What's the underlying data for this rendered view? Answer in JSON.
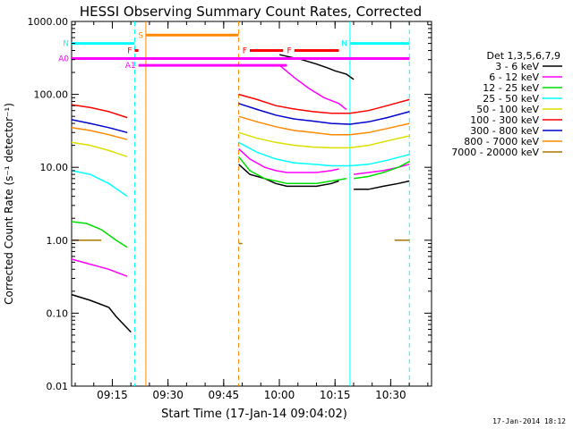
{
  "chart_data": {
    "type": "line",
    "title": "HESSI Observing Summary Count Rates, Corrected",
    "xlabel": "Start Time (17-Jan-14 09:04:02)",
    "ylabel": "Corrected Count Rate (s⁻¹ detector⁻¹)",
    "yscale": "log",
    "ylim": [
      0.01,
      1000
    ],
    "xlim": [
      "09:04:02",
      "10:41:00"
    ],
    "x_tick_labels": [
      "09:15",
      "09:30",
      "09:45",
      "10:00",
      "10:15",
      "10:30"
    ],
    "y_tick_labels": [
      "0.01",
      "0.10",
      "1.00",
      "10.00",
      "100.00",
      "1000.00"
    ],
    "timestamp": "17-Jan-2014 18:12",
    "legend": {
      "header": "Det 1,3,5,6,7,9",
      "placement": "right",
      "entries": [
        {
          "label": "3 - 6 keV",
          "color": "#000000"
        },
        {
          "label": "6 - 12 keV",
          "color": "#ff00ff"
        },
        {
          "label": "12 - 25 keV",
          "color": "#00dd00"
        },
        {
          "label": "25 - 50 keV",
          "color": "#00ffff"
        },
        {
          "label": "50 - 100 keV",
          "color": "#dddd00"
        },
        {
          "label": "100 - 300 keV",
          "color": "#ff0000"
        },
        {
          "label": "300 - 800 keV",
          "color": "#0000cc"
        },
        {
          "label": "800 - 7000 keV",
          "color": "#ff8800"
        },
        {
          "label": "7000 - 20000 keV",
          "color": "#aa7700"
        }
      ]
    },
    "flag_labels": [
      "S",
      "N",
      "F",
      "A0",
      "A1"
    ],
    "series": [
      {
        "name": "3 - 6 keV",
        "color": "#000000",
        "segments": [
          {
            "t": [
              0,
              5,
              10,
              12,
              16
            ],
            "y": [
              0.18,
              0.15,
              0.12,
              0.09,
              0.055
            ]
          },
          {
            "t": [
              56,
              62,
              66,
              69,
              71,
              74,
              76
            ],
            "y": [
              350,
              300,
              260,
              230,
              210,
              190,
              160
            ]
          },
          {
            "t": [
              45,
              48,
              52,
              55,
              58,
              62,
              66,
              70,
              72
            ],
            "y": [
              11,
              8,
              7,
              6,
              5.5,
              5.5,
              5.5,
              6,
              6.5
            ]
          },
          {
            "t": [
              76,
              80,
              84,
              88,
              91
            ],
            "y": [
              5,
              5,
              5.5,
              6,
              6.5
            ]
          }
        ]
      },
      {
        "name": "6 - 12 keV",
        "color": "#ff00ff",
        "segments": [
          {
            "t": [
              0,
              5,
              10,
              15
            ],
            "y": [
              0.55,
              0.47,
              0.4,
              0.32
            ]
          },
          {
            "t": [
              56,
              60,
              64,
              68,
              72,
              74
            ],
            "y": [
              250,
              170,
              120,
              90,
              75,
              62
            ]
          },
          {
            "t": [
              45,
              48,
              52,
              55,
              58,
              62,
              66,
              70,
              72
            ],
            "y": [
              18,
              13,
              10,
              9,
              8.5,
              8.5,
              8.5,
              9,
              9.5
            ]
          },
          {
            "t": [
              76,
              80,
              84,
              88,
              91
            ],
            "y": [
              8,
              8.5,
              9,
              10,
              11
            ]
          }
        ]
      },
      {
        "name": "12 - 25 keV",
        "color": "#00dd00",
        "segments": [
          {
            "t": [
              0,
              4,
              8,
              12,
              15
            ],
            "y": [
              1.8,
              1.7,
              1.4,
              1.0,
              0.8
            ]
          },
          {
            "t": [
              45,
              48,
              52,
              55,
              58,
              62,
              66,
              70,
              74
            ],
            "y": [
              14,
              9,
              7,
              6.5,
              6,
              6,
              6,
              6.5,
              7
            ]
          },
          {
            "t": [
              76,
              80,
              84,
              88,
              91
            ],
            "y": [
              7,
              7.5,
              8.5,
              10,
              12
            ]
          }
        ]
      },
      {
        "name": "25 - 50 keV",
        "color": "#00ffff",
        "segments": [
          {
            "t": [
              0,
              5,
              10,
              15
            ],
            "y": [
              9,
              8,
              6,
              4
            ]
          },
          {
            "t": [
              45,
              50,
              55,
              60,
              65,
              70,
              75,
              80,
              85,
              91
            ],
            "y": [
              22,
              16,
              13,
              11.5,
              11,
              10.5,
              10.5,
              11,
              12.5,
              15
            ]
          }
        ]
      },
      {
        "name": "50 - 100 keV",
        "color": "#dddd00",
        "segments": [
          {
            "t": [
              0,
              5,
              10,
              15
            ],
            "y": [
              22,
              20,
              17,
              14
            ]
          },
          {
            "t": [
              45,
              50,
              55,
              60,
              65,
              70,
              75,
              80,
              85,
              91
            ],
            "y": [
              30,
              25,
              22,
              20,
              19,
              18.5,
              18.5,
              20,
              23,
              27
            ]
          }
        ]
      },
      {
        "name": "100 - 300 keV",
        "color": "#ff0000",
        "segments": [
          {
            "t": [
              0,
              5,
              10,
              15
            ],
            "y": [
              72,
              66,
              58,
              48
            ]
          },
          {
            "t": [
              45,
              50,
              55,
              60,
              65,
              70,
              75,
              80,
              85,
              91
            ],
            "y": [
              100,
              85,
              70,
              63,
              58,
              55,
              55,
              60,
              70,
              85
            ]
          }
        ]
      },
      {
        "name": "300 - 800 keV",
        "color": "#0000cc",
        "segments": [
          {
            "t": [
              0,
              5,
              10,
              15
            ],
            "y": [
              45,
              40,
              35,
              30
            ]
          },
          {
            "t": [
              45,
              50,
              55,
              60,
              65,
              70,
              75,
              80,
              85,
              91
            ],
            "y": [
              75,
              62,
              52,
              46,
              43,
              40,
              39,
              42,
              48,
              58
            ]
          }
        ]
      },
      {
        "name": "800 - 7000 keV",
        "color": "#ff8800",
        "segments": [
          {
            "t": [
              0,
              5,
              10,
              15
            ],
            "y": [
              35,
              32,
              28,
              24
            ]
          },
          {
            "t": [
              45,
              50,
              55,
              60,
              65,
              70,
              75,
              80,
              85,
              91
            ],
            "y": [
              50,
              42,
              36,
              32,
              30,
              28,
              28,
              30,
              34,
              40
            ]
          }
        ]
      },
      {
        "name": "7000 - 20000 keV",
        "color": "#aa7700",
        "segments": [
          {
            "t": [
              0,
              8
            ],
            "y": [
              1.0,
              1.0
            ]
          },
          {
            "t": [
              45,
              46
            ],
            "y": [
              0.9,
              0.9
            ]
          },
          {
            "t": [
              87,
              91
            ],
            "y": [
              1.0,
              1.0
            ]
          }
        ]
      }
    ],
    "flags": [
      {
        "label": "S",
        "color": "#ff8800",
        "level": 650,
        "t_start": 20,
        "t_end": 45
      },
      {
        "label": "N",
        "color": "#00ffff",
        "level": 500,
        "t_start": 0,
        "t_end": 17
      },
      {
        "label": "N",
        "color": "#00ffff",
        "level": 500,
        "t_start": 75,
        "t_end": 91
      },
      {
        "label": "F",
        "color": "#ff0000",
        "level": 400,
        "t_start": 17,
        "t_end": 18
      },
      {
        "label": "F",
        "color": "#ff0000",
        "level": 400,
        "t_start": 48,
        "t_end": 57
      },
      {
        "label": "F",
        "color": "#ff0000",
        "level": 400,
        "t_start": 60,
        "t_end": 72
      },
      {
        "label": "A0",
        "color": "#ff00ff",
        "level": 310,
        "t_start": 0,
        "t_end": 91
      },
      {
        "label": "A1",
        "color": "#ff00ff",
        "level": 250,
        "t_start": 18,
        "t_end": 58
      }
    ],
    "vertical_lines": [
      {
        "t": 17,
        "color": "#00ffff",
        "style": "dashed"
      },
      {
        "t": 20,
        "color": "#ff8800",
        "style": "solid"
      },
      {
        "t": 45,
        "color": "#ff8800",
        "style": "dashed"
      },
      {
        "t": 75,
        "color": "#00ffff",
        "style": "solid"
      },
      {
        "t": 91,
        "color": "#00ffff",
        "style": "dashed"
      }
    ]
  }
}
